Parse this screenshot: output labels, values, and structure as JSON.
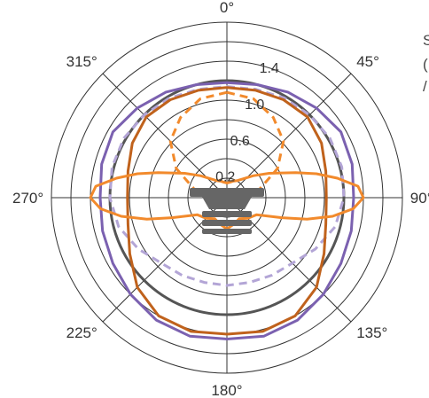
{
  "chart_data": {
    "type": "polar-line",
    "title": "",
    "angle_labels": [
      {
        "deg": 0,
        "label": "0°"
      },
      {
        "deg": 45,
        "label": "45°"
      },
      {
        "deg": 90,
        "label": "90°"
      },
      {
        "deg": 135,
        "label": "135°"
      },
      {
        "deg": 180,
        "label": "180°"
      },
      {
        "deg": 225,
        "label": "225°"
      },
      {
        "deg": 270,
        "label": "270°"
      },
      {
        "deg": 315,
        "label": "315°"
      }
    ],
    "radial_labels": [
      {
        "value": 0.2,
        "label": "0.2"
      },
      {
        "value": 0.6,
        "label": "0.6"
      },
      {
        "value": 1.0,
        "label": "1.0"
      },
      {
        "value": 1.4,
        "label": "1.4"
      }
    ],
    "radial_rings": [
      0.2,
      0.4,
      0.6,
      0.8,
      1.0,
      1.2,
      1.4,
      1.6,
      1.8
    ],
    "radial_max": 1.8,
    "reference_circle": 1.2,
    "spoke_angles": [
      0,
      45,
      90,
      135,
      180,
      225,
      270,
      315
    ],
    "colors": {
      "grid": "#333333",
      "reference": "#555555",
      "purple": "#7b61b0",
      "purple_light": "#b3a5d6",
      "brown": "#c0621c",
      "orange": "#f28a2c",
      "device": "#666666"
    },
    "series": [
      {
        "color": "#7b61b0",
        "dash": "solid",
        "angles": [
          0,
          15,
          30,
          45,
          60,
          75,
          90,
          105,
          120,
          135,
          150,
          165,
          180,
          195,
          210,
          225,
          240,
          255,
          270,
          285,
          300,
          315,
          330,
          345
        ],
        "values": [
          1.18,
          1.2,
          1.25,
          1.3,
          1.35,
          1.33,
          1.3,
          1.32,
          1.35,
          1.4,
          1.45,
          1.47,
          1.45,
          1.47,
          1.45,
          1.4,
          1.35,
          1.32,
          1.3,
          1.33,
          1.35,
          1.3,
          1.25,
          1.2
        ]
      },
      {
        "color": "#b3a5d6",
        "dash": "dashed",
        "angles": [
          0,
          15,
          30,
          45,
          60,
          75,
          90,
          105,
          120,
          135,
          150,
          165,
          180,
          195,
          210,
          225,
          240,
          255,
          270,
          285,
          300,
          315,
          330,
          345
        ],
        "values": [
          1.14,
          1.15,
          1.18,
          1.2,
          1.22,
          1.22,
          1.2,
          1.15,
          1.05,
          0.95,
          0.92,
          0.9,
          0.9,
          0.9,
          0.92,
          0.95,
          1.05,
          1.15,
          1.2,
          1.22,
          1.22,
          1.2,
          1.18,
          1.15
        ]
      },
      {
        "color": "#c0621c",
        "dash": "solid",
        "angles": [
          0,
          15,
          30,
          45,
          60,
          75,
          90,
          105,
          120,
          135,
          150,
          165,
          180,
          195,
          210,
          225,
          240,
          255,
          270,
          285,
          300,
          315,
          330,
          345
        ],
        "values": [
          1.13,
          1.14,
          1.16,
          1.17,
          1.12,
          1.05,
          1.02,
          1.05,
          1.15,
          1.3,
          1.4,
          1.42,
          1.4,
          1.42,
          1.4,
          1.3,
          1.15,
          1.05,
          1.02,
          1.05,
          1.12,
          1.17,
          1.16,
          1.14
        ]
      },
      {
        "color": "#f28a2c",
        "dash": "dashed",
        "angles": [
          0,
          15,
          30,
          45,
          60,
          75,
          90,
          105,
          120,
          135,
          150,
          165,
          180,
          195,
          210,
          225,
          240,
          255,
          270,
          285,
          300,
          315,
          330,
          345
        ],
        "values": [
          1.08,
          1.05,
          0.95,
          0.82,
          0.6,
          0.35,
          0.12,
          0.05,
          0.03,
          0.02,
          0.02,
          0.02,
          0.02,
          0.02,
          0.02,
          0.02,
          0.03,
          0.05,
          0.12,
          0.35,
          0.6,
          0.82,
          0.95,
          1.05
        ]
      },
      {
        "color": "#f28a2c",
        "dash": "solid",
        "angles": [
          0,
          10,
          20,
          30,
          40,
          50,
          60,
          70,
          75,
          80,
          85,
          90,
          95,
          100,
          105,
          110,
          120,
          135,
          150,
          165,
          180,
          195,
          210,
          225,
          240,
          250,
          255,
          260,
          265,
          270,
          275,
          280,
          285,
          290,
          300,
          310,
          320,
          330,
          340,
          350
        ],
        "values": [
          0.15,
          0.16,
          0.18,
          0.2,
          0.25,
          0.35,
          0.5,
          0.75,
          0.95,
          1.15,
          1.35,
          1.4,
          1.3,
          1.1,
          0.85,
          0.6,
          0.35,
          0.3,
          0.25,
          0.28,
          0.32,
          0.28,
          0.25,
          0.3,
          0.35,
          0.6,
          0.85,
          1.1,
          1.3,
          1.4,
          1.35,
          1.15,
          0.95,
          0.75,
          0.5,
          0.35,
          0.25,
          0.2,
          0.18,
          0.16
        ]
      }
    ],
    "legend_fragment": {
      "lines": [
        "S",
        "(",
        "/"
      ]
    }
  }
}
